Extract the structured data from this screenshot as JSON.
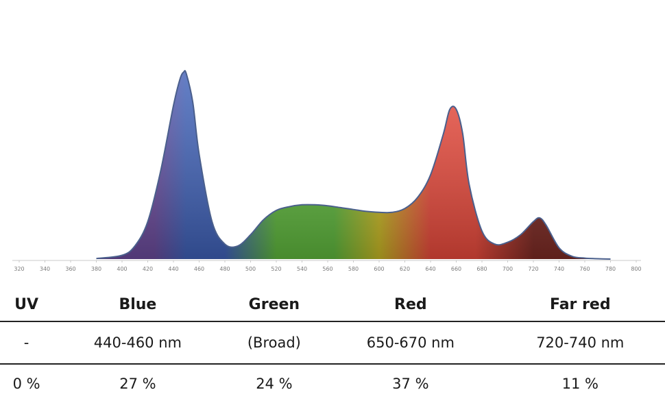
{
  "chart_data": {
    "type": "area",
    "title": "",
    "xlabel": "",
    "ylabel": "",
    "xlim": [
      315,
      805
    ],
    "ylim": [
      0,
      1
    ],
    "grid": false,
    "x_ticks": [
      320,
      340,
      360,
      380,
      400,
      420,
      440,
      460,
      480,
      500,
      520,
      540,
      560,
      580,
      600,
      620,
      640,
      660,
      680,
      700,
      720,
      740,
      760,
      780,
      800
    ],
    "series": [
      {
        "x": [
          380,
          400,
          410,
          420,
          430,
          440,
          445,
          448,
          450,
          455,
          460,
          470,
          480,
          490,
          500,
          510,
          520,
          530,
          540,
          550,
          560,
          570,
          580,
          590,
          600,
          610,
          620,
          630,
          640,
          650,
          655,
          660,
          665,
          670,
          680,
          690,
          700,
          710,
          720,
          725,
          730,
          740,
          750,
          760,
          770,
          780
        ],
        "y": [
          0.003,
          0.02,
          0.07,
          0.2,
          0.47,
          0.82,
          0.96,
          1.0,
          0.99,
          0.84,
          0.56,
          0.2,
          0.08,
          0.07,
          0.13,
          0.21,
          0.26,
          0.28,
          0.29,
          0.29,
          0.285,
          0.275,
          0.265,
          0.255,
          0.25,
          0.25,
          0.27,
          0.33,
          0.45,
          0.67,
          0.8,
          0.8,
          0.67,
          0.4,
          0.15,
          0.08,
          0.09,
          0.13,
          0.2,
          0.22,
          0.18,
          0.06,
          0.015,
          0.005,
          0.002,
          0.0
        ]
      }
    ]
  },
  "colors": {
    "outline": "#4a5f8c",
    "uv": "#6b4b9c",
    "blue": "#3f61b8",
    "green": "#5fb83d",
    "yellow": "#c8b824",
    "red": "#ea4a3c",
    "far_red": "#7d2a24"
  },
  "table": {
    "headers": [
      "UV",
      "Blue",
      "Green",
      "Red",
      "Far red"
    ],
    "ranges": [
      "-",
      "440-460 nm",
      "(Broad)",
      "650-670 nm",
      "720-740 nm"
    ],
    "percentages": [
      "0 %",
      "27 %",
      "24 %",
      "37 %",
      "11 %"
    ]
  }
}
